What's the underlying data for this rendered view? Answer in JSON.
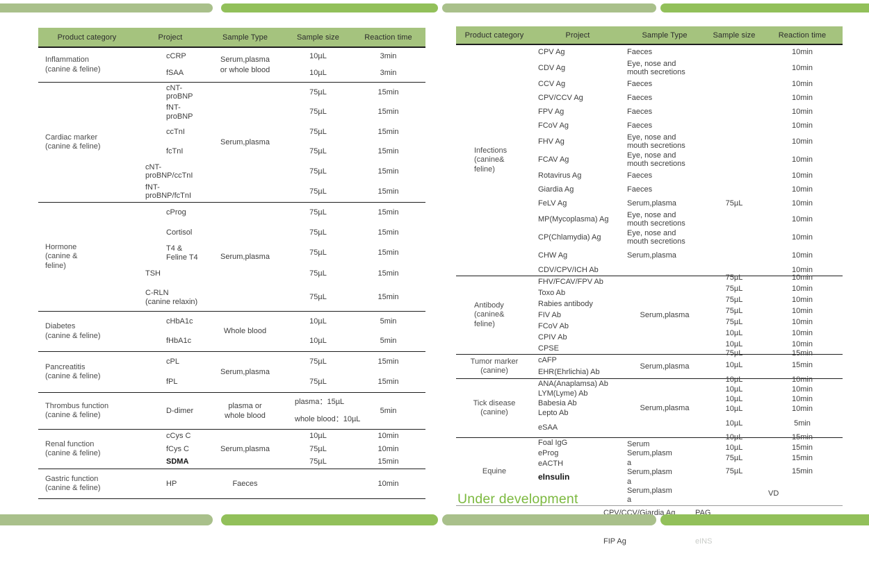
{
  "palette": {
    "header_green": "#a5c37e",
    "bar_light": "#a9c08b",
    "bar_bright": "#92c05a",
    "accent_green": "#7cb93f",
    "line_dark": "#1d1d1d",
    "text": "#3e3e3e",
    "faint_text": "#c9ccc8"
  },
  "left_table": {
    "headers": [
      "Product category",
      "Project",
      "Sample Type",
      "Sample size",
      "Reaction time"
    ],
    "sections": [
      {
        "category": "Inflammation\n(canine & feline)",
        "sample_type_merged": "Serum,plasma\nor whole blood",
        "rows": [
          {
            "project": "cCRP",
            "sample_size": "10µL",
            "reaction_time": "3min"
          },
          {
            "project": "fSAA",
            "sample_size": "10µL",
            "reaction_time": "3min"
          }
        ]
      },
      {
        "category": "Cardiac marker\n(canine & feline)",
        "sample_type_merged": "Serum,plasma",
        "rows": [
          {
            "project": "cNT-proBNP",
            "sample_size": "75µL",
            "reaction_time": "15min"
          },
          {
            "project": "fNT-proBNP",
            "sample_size": "75µL",
            "reaction_time": "15min"
          },
          {
            "project": "ccTnI",
            "sample_size": "75µL",
            "reaction_time": "15min"
          },
          {
            "project": "fcTnI",
            "sample_size": "75µL",
            "reaction_time": "15min"
          },
          {
            "project": "cNT-proBNP/ccTnI",
            "sample_size": "75µL",
            "reaction_time": "15min"
          },
          {
            "project": "fNT-proBNP/fcTnI",
            "sample_size": "75µL",
            "reaction_time": "15min"
          }
        ]
      },
      {
        "category": "Hormone\n(canine &\nfeline)",
        "sample_type_merged": "Serum,plasma",
        "rows": [
          {
            "project": "cProg",
            "sample_size": "75µL",
            "reaction_time": "15min"
          },
          {
            "project": "Cortisol",
            "sample_size": "75µL",
            "reaction_time": "15min"
          },
          {
            "project": "T4 & Feline T4",
            "sample_size": "75µL",
            "reaction_time": "15min"
          },
          {
            "project": "TSH",
            "sample_size": "75µL",
            "reaction_time": "15min"
          },
          {
            "project": "C-RLN\n(canine relaxin)",
            "sample_size": "75µL",
            "reaction_time": "15min"
          }
        ]
      },
      {
        "category": "Diabetes\n(canine & feline)",
        "sample_type_merged": "Whole blood",
        "rows": [
          {
            "project": "cHbA1c",
            "sample_size": "10µL",
            "reaction_time": "5min"
          },
          {
            "project": "fHbA1c",
            "sample_size": "10µL",
            "reaction_time": "5min"
          }
        ]
      },
      {
        "category": "Pancreatitis\n(canine & feline)",
        "sample_type_merged": "Serum,plasma",
        "rows": [
          {
            "project": "cPL",
            "sample_size": "75µL",
            "reaction_time": "15min"
          },
          {
            "project": "fPL",
            "sample_size": "75µL",
            "reaction_time": "15min"
          }
        ]
      },
      {
        "category": "Thrombus function\n(canine & feline)",
        "sample_type_merged": "plasma or\nwhole blood",
        "sample_size_merged": "plasma：15µL\nwhole blood：10µL",
        "rows": [
          {
            "project": "D-dimer",
            "reaction_time": "5min"
          }
        ]
      },
      {
        "category": "Renal function\n(canine & feline)",
        "sample_type_merged": "Serum,plasma",
        "rows": [
          {
            "project": "cCys C",
            "sample_size": "10µL",
            "reaction_time": "10min"
          },
          {
            "project": "fCys C",
            "sample_size": "75µL",
            "reaction_time": "10min"
          },
          {
            "project": "SDMA",
            "sample_size": "75µL",
            "reaction_time": "15min"
          }
        ]
      },
      {
        "category": "Gastric function\n(canine & feline)",
        "sample_type_merged": "Faeces",
        "rows": [
          {
            "project": "HP",
            "reaction_time": "10min"
          }
        ]
      }
    ]
  },
  "right_table": {
    "headers": [
      "Product category",
      "Project",
      "Sample Type",
      "Sample size",
      "Reaction time"
    ],
    "sections": [
      {
        "category": "Infections\n(canine&\nfeline)",
        "sample_size_merged": "75µL",
        "rows": [
          {
            "project": "CPV Ag",
            "sample_type": "Faeces",
            "reaction_time": "10min"
          },
          {
            "project": "CDV Ag",
            "sample_type": "Eye, nose and mouth secretions",
            "reaction_time": "10min"
          },
          {
            "project": "CCV Ag",
            "sample_type": "Faeces",
            "reaction_time": "10min"
          },
          {
            "project": "CPV/CCV Ag",
            "sample_type": "Faeces",
            "reaction_time": "10min"
          },
          {
            "project": "FPV Ag",
            "sample_type": "Faeces",
            "reaction_time": "10min"
          },
          {
            "project": "FCoV Ag",
            "sample_type": "Faeces",
            "reaction_time": "10min"
          },
          {
            "project": "FHV Ag",
            "sample_type": "Eye, nose and mouth secretions",
            "reaction_time": "10min"
          },
          {
            "project": "FCAV Ag",
            "sample_type": "Eye, nose and mouth secretions",
            "reaction_time": "10min"
          },
          {
            "project": "Rotavirus Ag",
            "sample_type": "Faeces",
            "reaction_time": "10min"
          },
          {
            "project": "Giardia Ag",
            "sample_type": "Faeces",
            "reaction_time": "10min"
          },
          {
            "project": "FeLV Ag",
            "sample_type": "Serum,plasma",
            "reaction_time": "10min"
          },
          {
            "project": "MP(Mycoplasma) Ag",
            "sample_type": "Eye, nose and mouth secretions",
            "reaction_time": "10min"
          },
          {
            "project": "CP(Chlamydia) Ag",
            "sample_type": "Eye, nose and mouth secretions",
            "reaction_time": "10min"
          },
          {
            "project": "CHW Ag",
            "sample_type": "Serum,plasma",
            "reaction_time": "10min"
          },
          {
            "project": "CDV/CPV/ICH Ab",
            "sample_type": "",
            "reaction_time": "10min"
          }
        ]
      },
      {
        "category": "Antibody\n(canine&\nfeline)",
        "sample_type_merged": "Serum,plasma",
        "rows": [
          {
            "project": "FHV/FCAV/FPV Ab",
            "sample_size": "75µL",
            "reaction_time": "10min"
          },
          {
            "project": "Toxo Ab",
            "sample_size": "75µL",
            "reaction_time": "10min"
          },
          {
            "project": "Rabies antibody",
            "sample_size": "75µL",
            "reaction_time": "10min"
          },
          {
            "project": "FIV Ab",
            "sample_size": "75µL",
            "reaction_time": "10min"
          },
          {
            "project": "FCoV Ab",
            "sample_size": "75µL",
            "reaction_time": "10min"
          },
          {
            "project": "CPIV Ab",
            "sample_size": "10µL",
            "reaction_time": "10min"
          },
          {
            "project": "CPSE",
            "sample_size": "10µL",
            "reaction_time": "10min"
          }
        ]
      },
      {
        "category": "Tumor marker\n(canine)",
        "sample_type_merged": "Serum,plasma",
        "rows": [
          {
            "project": "cAFP",
            "sample_size": "75µL",
            "reaction_time": "15min"
          },
          {
            "project": "EHR(Ehrlichia) Ab",
            "sample_size": "10µL",
            "reaction_time": "15min"
          }
        ]
      },
      {
        "category": "Tick disease\n(canine)",
        "sample_type_merged": "Serum,plasma",
        "rows": [
          {
            "project": "ANA(Anaplamsa) Ab",
            "sample_size": "10µL",
            "reaction_time": "10min"
          },
          {
            "project": "LYM(Lyme) Ab",
            "sample_size": "10µL",
            "reaction_time": "10min"
          },
          {
            "project": "Babesia Ab",
            "sample_size": "10µL",
            "reaction_time": "10min"
          },
          {
            "project": "Lepto Ab",
            "sample_size": "10µL",
            "reaction_time": "10min"
          },
          {
            "project": "eSAA",
            "sample_size": "10µL",
            "reaction_time": "5min"
          }
        ]
      },
      {
        "category": "Equine",
        "rows": [
          {
            "project": "Foal IgG",
            "sample_type": "Serum",
            "sample_size": "10µL",
            "reaction_time": "15min"
          },
          {
            "project": "eProg",
            "sample_type": "Serum,plasma",
            "sample_size": "10µL",
            "reaction_time": "15min"
          },
          {
            "project": "eACTH",
            "sample_type": "Serum,plasma",
            "sample_size": "75µL",
            "reaction_time": "15min"
          },
          {
            "project": "eInsulin",
            "sample_type": "Serum,plasma",
            "sample_size": "75µL",
            "reaction_time": "15min"
          }
        ]
      }
    ]
  },
  "under_development": {
    "label": "Under development",
    "items": [
      "CPV/CCV/Giardia Ag",
      "FIP Ag",
      "PAG",
      "eINS",
      "VD"
    ]
  }
}
